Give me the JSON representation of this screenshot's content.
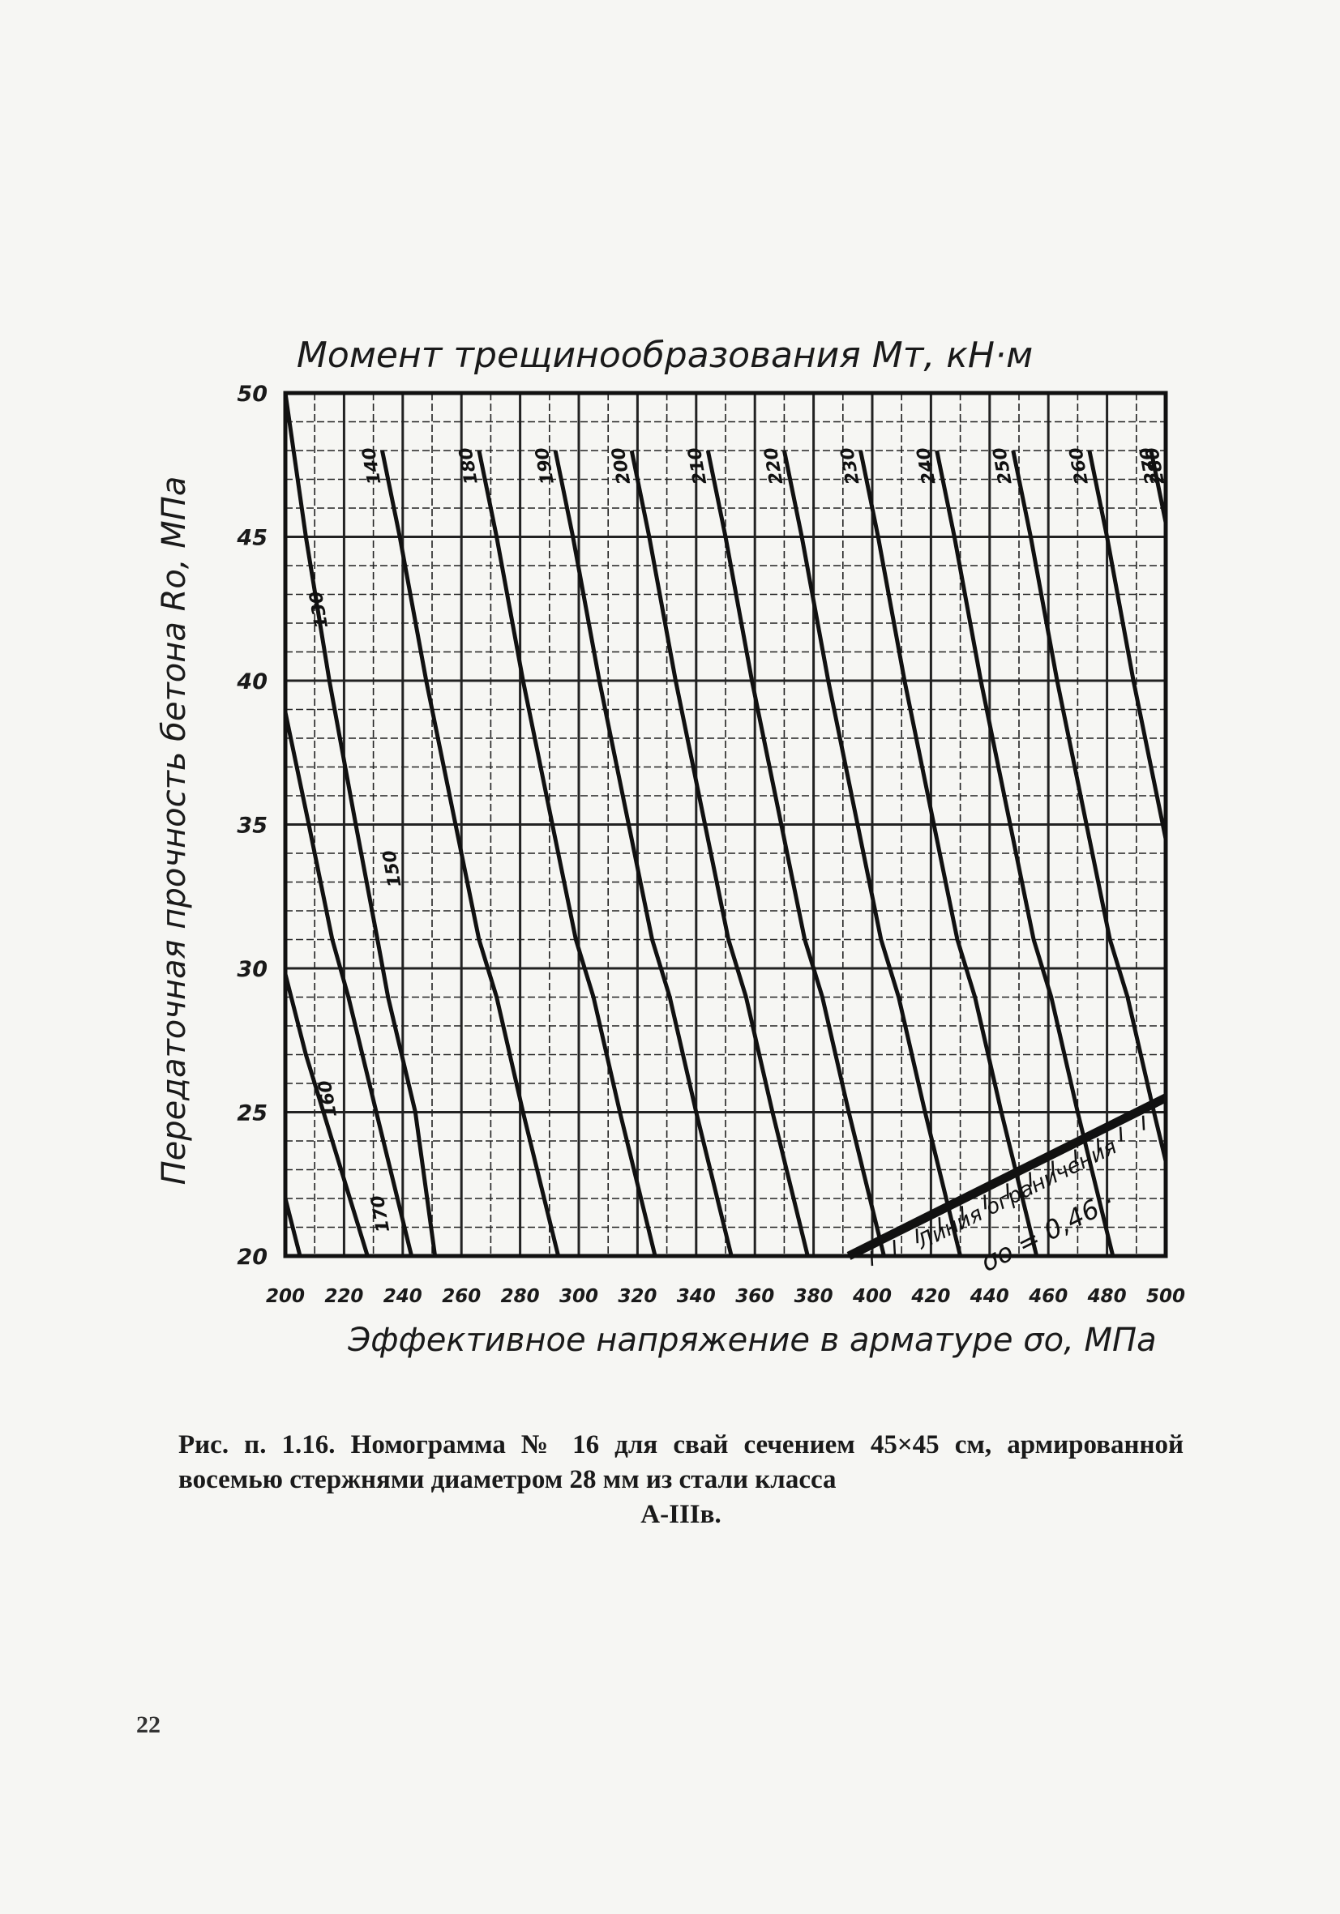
{
  "chart_data": {
    "type": "line",
    "title": "Момент трещинообразования Мт, кН·м",
    "xlabel": "Эффективное напряжение в арматуре σо, МПа",
    "ylabel": "Передаточная прочность бетона Rо, МПа",
    "xlim": [
      200,
      500
    ],
    "ylim": [
      20,
      50
    ],
    "grid": true,
    "x_ticks": [
      "200",
      "220",
      "240",
      "260",
      "280",
      "300",
      "320",
      "340",
      "360",
      "380",
      "400",
      "420",
      "440",
      "460",
      "480",
      "500"
    ],
    "y_ticks": [
      "20",
      "25",
      "30",
      "35",
      "40",
      "45",
      "50"
    ],
    "line_shape": {
      "comment_free_slope_top": 37,
      "slope_bottom": 20
    },
    "series": [
      {
        "name": "130",
        "label_at": [
          215,
          42.5
        ],
        "points": [
          [
            200,
            50
          ],
          [
            207,
            45
          ],
          [
            215,
            40
          ],
          [
            224,
            35
          ],
          [
            231.4,
            31
          ],
          [
            235,
            29
          ],
          [
            244.3,
            25
          ],
          [
            251,
            20
          ]
        ]
      },
      {
        "name": "140",
        "label_at": [
          233,
          47.5
        ],
        "points": [
          [
            200,
            38.9
          ],
          [
            208,
            35
          ],
          [
            216,
            31
          ],
          [
            221.5,
            29
          ],
          [
            231,
            25
          ],
          [
            243,
            20
          ]
        ]
      },
      {
        "name": "150",
        "label_at": [
          240,
          33.5
        ],
        "points": [
          [
            233,
            48
          ],
          [
            239,
            45
          ],
          [
            248,
            40
          ],
          [
            258,
            35
          ],
          [
            266,
            31
          ],
          [
            272,
            29
          ],
          [
            281,
            25
          ],
          [
            293,
            20
          ]
        ]
      },
      {
        "name": "160",
        "label_at": [
          218,
          25.5
        ],
        "points": [
          [
            200,
            29.8
          ],
          [
            207,
            27
          ],
          [
            213,
            25
          ],
          [
            228,
            20
          ]
        ]
      },
      {
        "name": "170",
        "label_at": [
          236,
          21.5
        ],
        "points": [
          [
            200,
            22
          ],
          [
            205,
            20
          ]
        ]
      },
      {
        "name": "180",
        "label_at": [
          266,
          47.5
        ],
        "points": [
          [
            266,
            48
          ],
          [
            272,
            45
          ],
          [
            281,
            40
          ],
          [
            291,
            35
          ],
          [
            299,
            31
          ],
          [
            305,
            29
          ],
          [
            314,
            25
          ],
          [
            326,
            20
          ]
        ]
      },
      {
        "name": "190",
        "label_at": [
          292,
          47.5
        ],
        "points": [
          [
            292,
            48
          ],
          [
            298,
            45
          ],
          [
            307,
            40
          ],
          [
            317,
            35
          ],
          [
            325,
            31
          ],
          [
            331,
            29
          ],
          [
            340,
            25
          ],
          [
            352,
            20
          ]
        ]
      },
      {
        "name": "200",
        "label_at": [
          318,
          47.5
        ],
        "points": [
          [
            318,
            48
          ],
          [
            324,
            45
          ],
          [
            333,
            40
          ],
          [
            343,
            35
          ],
          [
            351,
            31
          ],
          [
            357,
            29
          ],
          [
            366,
            25
          ],
          [
            378,
            20
          ]
        ]
      },
      {
        "name": "210",
        "label_at": [
          344,
          47.5
        ],
        "points": [
          [
            344,
            48
          ],
          [
            350,
            45
          ],
          [
            359,
            40
          ],
          [
            369,
            35
          ],
          [
            377,
            31
          ],
          [
            383,
            29
          ],
          [
            392,
            25
          ],
          [
            404,
            20
          ]
        ]
      },
      {
        "name": "220",
        "label_at": [
          370,
          47.5
        ],
        "points": [
          [
            370,
            48
          ],
          [
            376,
            45
          ],
          [
            385,
            40
          ],
          [
            395,
            35
          ],
          [
            403,
            31
          ],
          [
            409,
            29
          ],
          [
            418,
            25
          ],
          [
            430,
            20
          ]
        ]
      },
      {
        "name": "230",
        "label_at": [
          396,
          47.5
        ],
        "points": [
          [
            396,
            48
          ],
          [
            402,
            45
          ],
          [
            411,
            40
          ],
          [
            421,
            35
          ],
          [
            429,
            31
          ],
          [
            435,
            29
          ],
          [
            444,
            25
          ],
          [
            456,
            20
          ]
        ]
      },
      {
        "name": "240",
        "label_at": [
          422,
          47.5
        ],
        "points": [
          [
            422,
            48
          ],
          [
            428,
            45
          ],
          [
            437,
            40
          ],
          [
            447,
            35
          ],
          [
            455,
            31
          ],
          [
            461,
            29
          ],
          [
            470,
            25
          ],
          [
            482,
            20
          ]
        ]
      },
      {
        "name": "250",
        "label_at": [
          448,
          47.5
        ],
        "points": [
          [
            448,
            48
          ],
          [
            454,
            45
          ],
          [
            463,
            40
          ],
          [
            473,
            35
          ],
          [
            481,
            31
          ],
          [
            487,
            29
          ],
          [
            496,
            25
          ],
          [
            500,
            23.3
          ]
        ]
      },
      {
        "name": "260",
        "label_at": [
          474,
          47.5
        ],
        "points": [
          [
            474,
            48
          ],
          [
            480,
            45
          ],
          [
            489,
            40
          ],
          [
            499,
            35
          ],
          [
            500,
            34.5
          ]
        ]
      },
      {
        "name": "270",
        "label_at": [
          498,
          47.5
        ],
        "points": [
          [
            495,
            48
          ],
          [
            500,
            45.5
          ]
        ]
      },
      {
        "name": "280",
        "label_at": [
          500,
          47.5
        ],
        "points": [
          [
            500,
            47.6
          ]
        ]
      }
    ],
    "limit_line": {
      "label": "Линия ограничения",
      "formula": "σо = 0,46 ·",
      "from": [
        392,
        20
      ],
      "to": [
        500,
        25.5
      ]
    }
  },
  "caption": {
    "text": "Рис. п. 1.16. Номограмма № 16 для свай сечением 45×45 см, армированной восемью стержнями диаметром 28 мм из стали класса",
    "last_line": "А-IIIв."
  },
  "page_number": "22"
}
